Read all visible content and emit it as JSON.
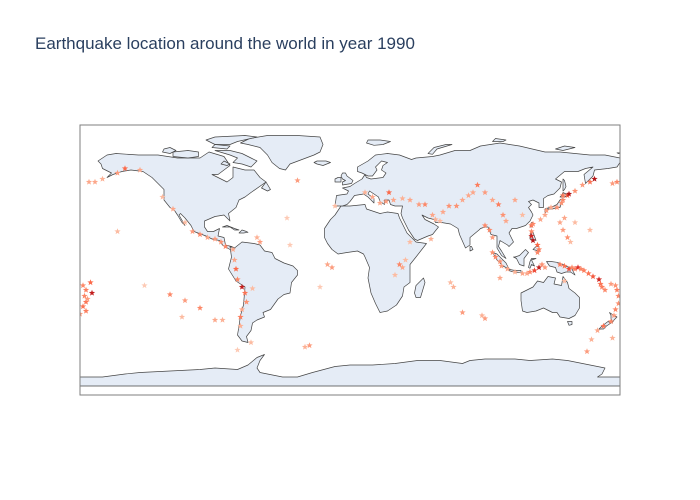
{
  "title": "Earthquake location around the world in year 1990",
  "colors": {
    "land": "#e5ecf6",
    "ocean": "#ffffff",
    "coastline": "#444444",
    "frame": "#7f7f7f",
    "scale": [
      "#fff5f0",
      "#fcbba1",
      "#fc9272",
      "#fb6a4a",
      "#de2d26",
      "#a50f15"
    ]
  },
  "chart_data": {
    "type": "scatter",
    "projection": "equirectangular",
    "marker": "star",
    "lon_range": [
      -180,
      180
    ],
    "lat_range": [
      -90,
      90
    ],
    "events": [
      {
        "lon": -174,
        "lat": 52,
        "v": 0.3
      },
      {
        "lon": -165,
        "lat": 54,
        "v": 0.25
      },
      {
        "lon": -155,
        "lat": 58,
        "v": 0.35
      },
      {
        "lon": -150,
        "lat": 61,
        "v": 0.6
      },
      {
        "lon": -140,
        "lat": 60,
        "v": 0.3
      },
      {
        "lon": -125,
        "lat": 42,
        "v": 0.2
      },
      {
        "lon": -118,
        "lat": 34,
        "v": 0.3
      },
      {
        "lon": -110,
        "lat": 25,
        "v": 0.2
      },
      {
        "lon": -105,
        "lat": 19,
        "v": 0.35
      },
      {
        "lon": -100,
        "lat": 17,
        "v": 0.45
      },
      {
        "lon": -95,
        "lat": 15,
        "v": 0.3
      },
      {
        "lon": -90,
        "lat": 14,
        "v": 0.35
      },
      {
        "lon": -86,
        "lat": 12,
        "v": 0.4
      },
      {
        "lon": -83,
        "lat": 9,
        "v": 0.45
      },
      {
        "lon": -78,
        "lat": 7,
        "v": 0.3
      },
      {
        "lon": -77,
        "lat": 0,
        "v": 0.3
      },
      {
        "lon": -76,
        "lat": -6,
        "v": 0.6
      },
      {
        "lon": -75,
        "lat": -13,
        "v": 0.45
      },
      {
        "lon": -72,
        "lat": -18,
        "v": 0.9
      },
      {
        "lon": -70,
        "lat": -22,
        "v": 0.55
      },
      {
        "lon": -69,
        "lat": -28,
        "v": 0.4
      },
      {
        "lon": -72,
        "lat": -33,
        "v": 0.3
      },
      {
        "lon": -73,
        "lat": -38,
        "v": 0.5
      },
      {
        "lon": -73,
        "lat": -44,
        "v": 0.25
      },
      {
        "lon": -66,
        "lat": -55,
        "v": 0.2
      },
      {
        "lon": -65,
        "lat": -19,
        "v": 0.2
      },
      {
        "lon": -62,
        "lat": 15,
        "v": 0.25
      },
      {
        "lon": -60,
        "lat": 12,
        "v": 0.35
      },
      {
        "lon": -27,
        "lat": -57,
        "v": 0.35
      },
      {
        "lon": -30,
        "lat": -58,
        "v": 0.25
      },
      {
        "lon": -35,
        "lat": 53,
        "v": 0.35
      },
      {
        "lon": -42,
        "lat": 28,
        "v": 0.15
      },
      {
        "lon": -40,
        "lat": 10,
        "v": 0.15
      },
      {
        "lon": -15,
        "lat": -3,
        "v": 0.3
      },
      {
        "lon": -12,
        "lat": -5,
        "v": 0.35
      },
      {
        "lon": -20,
        "lat": -18,
        "v": 0.15
      },
      {
        "lon": 20,
        "lat": 38,
        "v": 0.3
      },
      {
        "lon": 24,
        "lat": 39,
        "v": 0.35
      },
      {
        "lon": 26,
        "lat": 45,
        "v": 0.6
      },
      {
        "lon": 29,
        "lat": 40,
        "v": 0.3
      },
      {
        "lon": 35,
        "lat": 41,
        "v": 0.25
      },
      {
        "lon": 40,
        "lat": 40,
        "v": 0.3
      },
      {
        "lon": 46,
        "lat": 37,
        "v": 0.35
      },
      {
        "lon": 50,
        "lat": 37,
        "v": 0.45
      },
      {
        "lon": 55,
        "lat": 30,
        "v": 0.3
      },
      {
        "lon": 57,
        "lat": 27,
        "v": 0.25
      },
      {
        "lon": 60,
        "lat": 26,
        "v": 0.2
      },
      {
        "lon": 62,
        "lat": 32,
        "v": 0.3
      },
      {
        "lon": 66,
        "lat": 36,
        "v": 0.4
      },
      {
        "lon": 71,
        "lat": 36,
        "v": 0.4
      },
      {
        "lon": 75,
        "lat": 40,
        "v": 0.3
      },
      {
        "lon": 79,
        "lat": 43,
        "v": 0.3
      },
      {
        "lon": 82,
        "lat": 45,
        "v": 0.3
      },
      {
        "lon": 85,
        "lat": 50,
        "v": 0.5
      },
      {
        "lon": 90,
        "lat": 45,
        "v": 0.35
      },
      {
        "lon": 95,
        "lat": 40,
        "v": 0.3
      },
      {
        "lon": 99,
        "lat": 37,
        "v": 0.5
      },
      {
        "lon": 102,
        "lat": 30,
        "v": 0.4
      },
      {
        "lon": 104,
        "lat": 26,
        "v": 0.3
      },
      {
        "lon": 90,
        "lat": 23,
        "v": 0.45
      },
      {
        "lon": 93,
        "lat": 20,
        "v": 0.45
      },
      {
        "lon": 95,
        "lat": 15,
        "v": 0.35
      },
      {
        "lon": 95,
        "lat": 5,
        "v": 0.4
      },
      {
        "lon": 97,
        "lat": 2,
        "v": 0.45
      },
      {
        "lon": 100,
        "lat": -1,
        "v": 0.4
      },
      {
        "lon": 101,
        "lat": -4,
        "v": 0.35
      },
      {
        "lon": 105,
        "lat": -6,
        "v": 0.3
      },
      {
        "lon": 110,
        "lat": -8,
        "v": 0.25
      },
      {
        "lon": 115,
        "lat": -9,
        "v": 0.3
      },
      {
        "lon": 118,
        "lat": -9,
        "v": 0.3
      },
      {
        "lon": 120,
        "lat": -8,
        "v": 0.45
      },
      {
        "lon": 123,
        "lat": -7,
        "v": 0.7
      },
      {
        "lon": 126,
        "lat": -5,
        "v": 0.9
      },
      {
        "lon": 128,
        "lat": -3,
        "v": 0.4
      },
      {
        "lon": 130,
        "lat": -5,
        "v": 0.35
      },
      {
        "lon": 125,
        "lat": 5,
        "v": 0.45
      },
      {
        "lon": 126,
        "lat": 7,
        "v": 0.5
      },
      {
        "lon": 125,
        "lat": 10,
        "v": 0.6
      },
      {
        "lon": 122,
        "lat": 13,
        "v": 0.95
      },
      {
        "lon": 121,
        "lat": 16,
        "v": 0.85
      },
      {
        "lon": 121,
        "lat": 19,
        "v": 0.45
      },
      {
        "lon": 121,
        "lat": 23,
        "v": 0.55
      },
      {
        "lon": 122,
        "lat": 24,
        "v": 0.45
      },
      {
        "lon": 127,
        "lat": 27,
        "v": 0.3
      },
      {
        "lon": 130,
        "lat": 30,
        "v": 0.3
      },
      {
        "lon": 131,
        "lat": 33,
        "v": 0.35
      },
      {
        "lon": 134,
        "lat": 35,
        "v": 0.3
      },
      {
        "lon": 138,
        "lat": 35,
        "v": 0.4
      },
      {
        "lon": 141,
        "lat": 38,
        "v": 0.4
      },
      {
        "lon": 142,
        "lat": 40,
        "v": 0.45
      },
      {
        "lon": 142,
        "lat": 43,
        "v": 0.5
      },
      {
        "lon": 145,
        "lat": 43,
        "v": 0.6
      },
      {
        "lon": 146,
        "lat": 44,
        "v": 0.95
      },
      {
        "lon": 150,
        "lat": 46,
        "v": 0.4
      },
      {
        "lon": 155,
        "lat": 50,
        "v": 0.35
      },
      {
        "lon": 160,
        "lat": 52,
        "v": 0.55
      },
      {
        "lon": 163,
        "lat": 54,
        "v": 0.95
      },
      {
        "lon": 143,
        "lat": 28,
        "v": 0.3
      },
      {
        "lon": 140,
        "lat": 25,
        "v": 0.3
      },
      {
        "lon": 142,
        "lat": 20,
        "v": 0.35
      },
      {
        "lon": 145,
        "lat": 15,
        "v": 0.4
      },
      {
        "lon": 147,
        "lat": 12,
        "v": 0.2
      },
      {
        "lon": 140,
        "lat": -3,
        "v": 0.5
      },
      {
        "lon": 143,
        "lat": -4,
        "v": 0.55
      },
      {
        "lon": 146,
        "lat": -6,
        "v": 0.7
      },
      {
        "lon": 148,
        "lat": -5,
        "v": 0.45
      },
      {
        "lon": 150,
        "lat": -6,
        "v": 0.5
      },
      {
        "lon": 152,
        "lat": -5,
        "v": 0.8
      },
      {
        "lon": 154,
        "lat": -6,
        "v": 0.45
      },
      {
        "lon": 156,
        "lat": -7,
        "v": 0.5
      },
      {
        "lon": 159,
        "lat": -9,
        "v": 0.55
      },
      {
        "lon": 162,
        "lat": -11,
        "v": 0.65
      },
      {
        "lon": 166,
        "lat": -13,
        "v": 0.85
      },
      {
        "lon": 167,
        "lat": -16,
        "v": 0.55
      },
      {
        "lon": 168,
        "lat": -18,
        "v": 0.5
      },
      {
        "lon": 170,
        "lat": -20,
        "v": 0.45
      },
      {
        "lon": 174,
        "lat": -16,
        "v": 0.35
      },
      {
        "lon": 177,
        "lat": -17,
        "v": 0.4
      },
      {
        "lon": 178,
        "lat": -20,
        "v": 0.5
      },
      {
        "lon": 179,
        "lat": -24,
        "v": 0.45
      },
      {
        "lon": 179,
        "lat": -29,
        "v": 0.4
      },
      {
        "lon": 177,
        "lat": -33,
        "v": 0.45
      },
      {
        "lon": 176,
        "lat": -37,
        "v": 0.35
      },
      {
        "lon": 174,
        "lat": -41,
        "v": 0.45
      },
      {
        "lon": 169,
        "lat": -44,
        "v": 0.55
      },
      {
        "lon": 165,
        "lat": -47,
        "v": 0.3
      },
      {
        "lon": 161,
        "lat": -53,
        "v": 0.25
      },
      {
        "lon": 158,
        "lat": -61,
        "v": 0.35
      },
      {
        "lon": 175,
        "lat": -52,
        "v": 0.25
      },
      {
        "lon": -178,
        "lat": -17,
        "v": 0.45
      },
      {
        "lon": -176,
        "lat": -20,
        "v": 0.5
      },
      {
        "lon": -177,
        "lat": -24,
        "v": 0.45
      },
      {
        "lon": -176,
        "lat": -28,
        "v": 0.55
      },
      {
        "lon": -178,
        "lat": -31,
        "v": 0.55
      },
      {
        "lon": -176,
        "lat": -34,
        "v": 0.5
      },
      {
        "lon": -173,
        "lat": -15,
        "v": 0.6
      },
      {
        "lon": -172,
        "lat": -22,
        "v": 0.9
      },
      {
        "lon": -175,
        "lat": -26,
        "v": 0.35
      },
      {
        "lon": -180,
        "lat": -36,
        "v": 0.35
      },
      {
        "lon": -120,
        "lat": -23,
        "v": 0.45
      },
      {
        "lon": -110,
        "lat": -27,
        "v": 0.35
      },
      {
        "lon": -100,
        "lat": -32,
        "v": 0.45
      },
      {
        "lon": -112,
        "lat": -38,
        "v": 0.2
      },
      {
        "lon": -90,
        "lat": -40,
        "v": 0.3
      },
      {
        "lon": -85,
        "lat": -40,
        "v": 0.25
      },
      {
        "lon": -75,
        "lat": -60,
        "v": 0.15
      },
      {
        "lon": 30,
        "lat": -10,
        "v": 0.2
      },
      {
        "lon": 33,
        "lat": -3,
        "v": 0.45
      },
      {
        "lon": 35,
        "lat": -5,
        "v": 0.3
      },
      {
        "lon": 37,
        "lat": 0,
        "v": 0.2
      },
      {
        "lon": 40,
        "lat": 12,
        "v": 0.2
      },
      {
        "lon": 67,
        "lat": -15,
        "v": 0.2
      },
      {
        "lon": 75,
        "lat": -35,
        "v": 0.35
      },
      {
        "lon": 88,
        "lat": -37,
        "v": 0.25
      },
      {
        "lon": 90,
        "lat": -39,
        "v": 0.35
      },
      {
        "lon": 69,
        "lat": -18,
        "v": 0.25
      },
      {
        "lon": 100,
        "lat": -12,
        "v": 0.3
      },
      {
        "lon": 150,
        "lat": 25,
        "v": 0.2
      },
      {
        "lon": 160,
        "lat": 20,
        "v": 0.2
      },
      {
        "lon": 175,
        "lat": 51,
        "v": 0.35
      },
      {
        "lon": 178,
        "lat": 52,
        "v": 0.45
      },
      {
        "lon": -170,
        "lat": 52,
        "v": 0.3
      },
      {
        "lon": 143,
        "lat": -14,
        "v": 0.2
      },
      {
        "lon": -137,
        "lat": -17,
        "v": 0.15
      },
      {
        "lon": -155,
        "lat": 19,
        "v": 0.2
      },
      {
        "lon": 54,
        "lat": 14,
        "v": 0.25
      },
      {
        "lon": 10,
        "lat": 45,
        "v": 0.25
      },
      {
        "lon": 15,
        "lat": 42,
        "v": 0.3
      },
      {
        "lon": -10,
        "lat": 36,
        "v": 0.2
      },
      {
        "lon": 110,
        "lat": 40,
        "v": 0.3
      },
      {
        "lon": 115,
        "lat": 30,
        "v": 0.2
      }
    ]
  }
}
